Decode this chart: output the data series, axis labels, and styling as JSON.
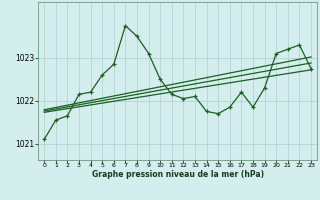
{
  "title": "Graphe pression niveau de la mer (hPa)",
  "bg_color": "#d4eeed",
  "grid_color": "#b0cccc",
  "line_color": "#1a6020",
  "xlim": [
    -0.5,
    23.5
  ],
  "ylim": [
    1020.62,
    1024.3
  ],
  "yticks": [
    1021,
    1022,
    1023
  ],
  "xticks": [
    0,
    1,
    2,
    3,
    4,
    5,
    6,
    7,
    8,
    9,
    10,
    11,
    12,
    13,
    14,
    15,
    16,
    17,
    18,
    19,
    20,
    21,
    22,
    23
  ],
  "main_x": [
    0,
    1,
    2,
    3,
    4,
    5,
    6,
    7,
    8,
    9,
    10,
    11,
    12,
    13,
    14,
    15,
    16,
    17,
    18,
    19,
    20,
    21,
    22,
    23
  ],
  "main_y": [
    1021.1,
    1021.55,
    1021.65,
    1022.15,
    1022.2,
    1022.6,
    1022.85,
    1023.75,
    1023.5,
    1023.1,
    1022.5,
    1022.15,
    1022.05,
    1022.1,
    1021.75,
    1021.7,
    1021.85,
    1022.2,
    1021.85,
    1022.3,
    1023.1,
    1023.2,
    1023.3,
    1022.75
  ],
  "trend_lines": [
    {
      "x0": 0,
      "y0": 1021.73,
      "x1": 23,
      "y1": 1022.72
    },
    {
      "x0": 0,
      "y0": 1021.76,
      "x1": 23,
      "y1": 1022.88
    },
    {
      "x0": 0,
      "y0": 1021.79,
      "x1": 23,
      "y1": 1023.02
    }
  ]
}
